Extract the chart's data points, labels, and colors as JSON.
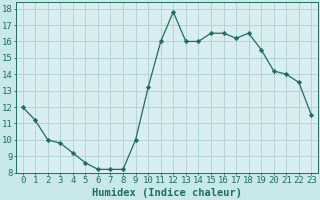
{
  "x": [
    0,
    1,
    2,
    3,
    4,
    5,
    6,
    7,
    8,
    9,
    10,
    11,
    12,
    13,
    14,
    15,
    16,
    17,
    18,
    19,
    20,
    21,
    22,
    23
  ],
  "y": [
    12,
    11.2,
    10,
    9.8,
    9.2,
    8.6,
    8.2,
    8.2,
    8.2,
    10,
    13.2,
    16,
    17.8,
    16,
    16,
    16.5,
    16.5,
    16.2,
    16.5,
    15.5,
    14.2,
    14,
    13.5,
    11.5
  ],
  "line_color": "#1e6e5e",
  "marker": "D",
  "marker_size": 2.2,
  "bg_color": "#c8e8e8",
  "grid_color": "#b0d0d0",
  "plot_bg": "#d8eeee",
  "xlabel": "Humidex (Indice chaleur)",
  "xlim": [
    -0.5,
    23.5
  ],
  "ylim": [
    8,
    18.4
  ],
  "yticks": [
    8,
    9,
    10,
    11,
    12,
    13,
    14,
    15,
    16,
    17,
    18
  ],
  "xticks": [
    0,
    1,
    2,
    3,
    4,
    5,
    6,
    7,
    8,
    9,
    10,
    11,
    12,
    13,
    14,
    15,
    16,
    17,
    18,
    19,
    20,
    21,
    22,
    23
  ],
  "xlabel_fontsize": 7.5,
  "tick_fontsize": 6.5,
  "label_color": "#1e6e5e"
}
